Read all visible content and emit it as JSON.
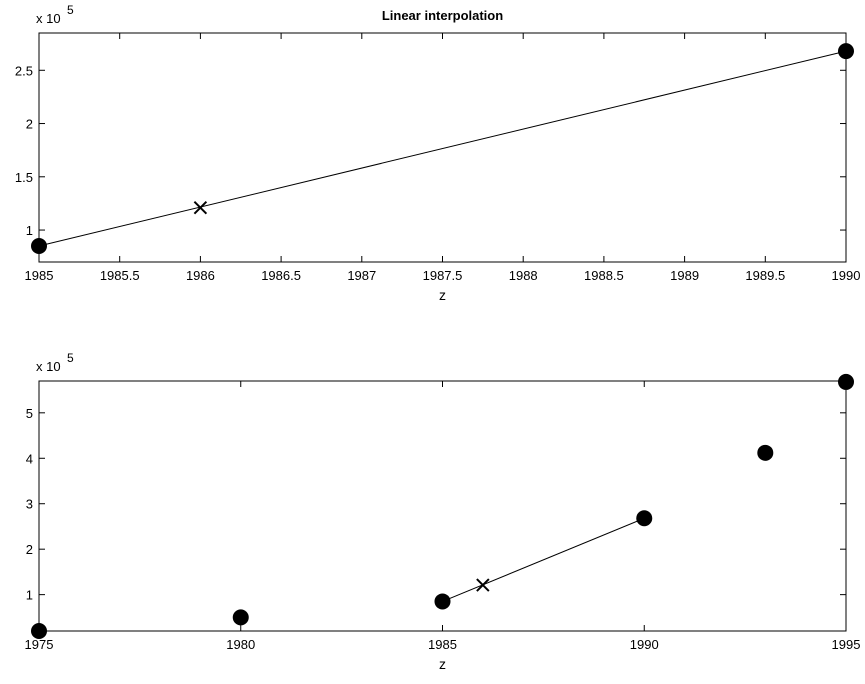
{
  "chart_data": [
    {
      "type": "line",
      "title": "Linear interpolation",
      "xlabel": "z",
      "ylabel": "",
      "y_exponent_label": "x 10",
      "y_exponent": "5",
      "xlim": [
        1985,
        1990
      ],
      "ylim": [
        0.7,
        2.85
      ],
      "x_ticks": [
        1985,
        1985.5,
        1986,
        1986.5,
        1987,
        1987.5,
        1988,
        1988.5,
        1989,
        1989.5,
        1990
      ],
      "x_tick_labels": [
        "1985",
        "1985.5",
        "1986",
        "1986.5",
        "1987",
        "1987.5",
        "1988",
        "1988.5",
        "1989",
        "1989.5",
        "1990"
      ],
      "y_ticks": [
        1,
        1.5,
        2,
        2.5
      ],
      "y_tick_labels": [
        "1",
        "1.5",
        "2",
        "2.5"
      ],
      "grid": false,
      "series": [
        {
          "kind": "line",
          "x": [
            1985,
            1990
          ],
          "y": [
            0.85,
            2.68
          ]
        },
        {
          "kind": "points",
          "marker": "circle",
          "x": [
            1985,
            1990
          ],
          "y": [
            0.85,
            2.68
          ]
        },
        {
          "kind": "points",
          "marker": "cross",
          "x": [
            1986
          ],
          "y": [
            1.21
          ]
        }
      ]
    },
    {
      "type": "scatter",
      "title": "",
      "xlabel": "z",
      "ylabel": "",
      "y_exponent_label": "x 10",
      "y_exponent": "5",
      "xlim": [
        1975,
        1995
      ],
      "ylim": [
        0.2,
        5.7
      ],
      "x_ticks": [
        1975,
        1980,
        1985,
        1990,
        1995
      ],
      "x_tick_labels": [
        "1975",
        "1980",
        "1985",
        "1990",
        "1995"
      ],
      "y_ticks": [
        1,
        2,
        3,
        4,
        5
      ],
      "y_tick_labels": [
        "1",
        "2",
        "3",
        "4",
        "5"
      ],
      "grid": false,
      "series": [
        {
          "kind": "line",
          "x": [
            1985,
            1990
          ],
          "y": [
            0.85,
            2.68
          ]
        },
        {
          "kind": "points",
          "marker": "circle",
          "x": [
            1975,
            1980,
            1985,
            1990,
            1993,
            1995
          ],
          "y": [
            0.2,
            0.5,
            0.85,
            2.68,
            4.12,
            5.68
          ]
        },
        {
          "kind": "points",
          "marker": "cross",
          "x": [
            1986
          ],
          "y": [
            1.21
          ]
        }
      ]
    }
  ]
}
